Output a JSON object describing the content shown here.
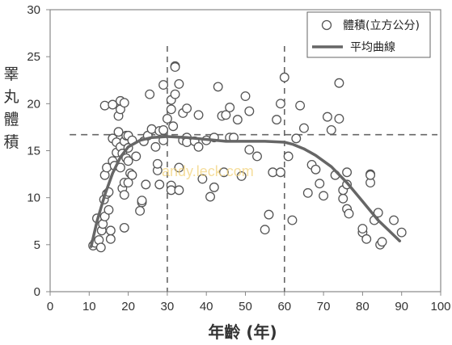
{
  "chart_data": {
    "type": "scatter",
    "xlabel": "年齡 (年)",
    "ylabel": "睪丸體積",
    "xlim": [
      0,
      100
    ],
    "ylim": [
      0,
      30
    ],
    "x_ticks": [
      0,
      10,
      20,
      30,
      40,
      50,
      60,
      70,
      80,
      90,
      100
    ],
    "y_ticks": [
      0,
      5,
      10,
      15,
      20,
      25,
      30
    ],
    "grid": false,
    "legend_position": "top-right",
    "watermark": "andy.leck.com",
    "reference_lines": {
      "vertical": [
        30,
        60
      ],
      "horizontal": 16.7
    },
    "series": [
      {
        "name": "體積(立方公分)",
        "kind": "scatter",
        "points": [
          [
            11,
            4.9
          ],
          [
            11.5,
            5.2
          ],
          [
            12,
            7.8
          ],
          [
            12.5,
            5.5
          ],
          [
            13,
            4.7
          ],
          [
            13.2,
            6.5
          ],
          [
            13.5,
            7.2
          ],
          [
            13.8,
            9.8
          ],
          [
            14,
            8
          ],
          [
            14,
            12.4
          ],
          [
            14,
            19.8
          ],
          [
            14.5,
            10.4
          ],
          [
            14.5,
            13.2
          ],
          [
            15,
            8.7
          ],
          [
            15,
            10.6
          ],
          [
            15.5,
            6.5
          ],
          [
            15.5,
            5.6
          ],
          [
            16,
            13.9
          ],
          [
            16,
            16.3
          ],
          [
            16,
            19.9
          ],
          [
            16.5,
            13.4
          ],
          [
            17,
            14.8
          ],
          [
            17,
            15.9
          ],
          [
            17.5,
            17
          ],
          [
            17.5,
            18.7
          ],
          [
            18,
            13.2
          ],
          [
            18,
            15.4
          ],
          [
            18,
            19.4
          ],
          [
            18,
            20.3
          ],
          [
            18.5,
            11
          ],
          [
            18.5,
            14.7
          ],
          [
            19,
            11.6
          ],
          [
            19,
            10.3
          ],
          [
            19,
            16
          ],
          [
            19,
            20.1
          ],
          [
            19,
            6.8
          ],
          [
            19.5,
            14.2
          ],
          [
            19.5,
            16.6
          ],
          [
            20,
            11.6
          ],
          [
            20,
            13.9
          ],
          [
            20,
            15.3
          ],
          [
            20,
            16.6
          ],
          [
            20.5,
            12.6
          ],
          [
            21,
            16.1
          ],
          [
            21,
            12.4
          ],
          [
            22,
            14.4
          ],
          [
            23,
            8.6
          ],
          [
            23.5,
            9.5
          ],
          [
            23.5,
            9.7
          ],
          [
            24,
            16
          ],
          [
            24.5,
            11.4
          ],
          [
            25,
            16.6
          ],
          [
            25.5,
            21
          ],
          [
            26,
            17.3
          ],
          [
            27,
            15.4
          ],
          [
            27.5,
            12.9
          ],
          [
            27.5,
            13.6
          ],
          [
            28,
            17.1
          ],
          [
            28,
            11.4
          ],
          [
            29,
            16.1
          ],
          [
            29,
            17.2
          ],
          [
            29,
            22
          ],
          [
            30,
            18.4
          ],
          [
            31,
            19.4
          ],
          [
            31,
            20.4
          ],
          [
            31,
            11.3
          ],
          [
            31,
            10.8
          ],
          [
            31.5,
            17.6
          ],
          [
            32,
            24
          ],
          [
            32,
            23.9
          ],
          [
            32,
            21
          ],
          [
            33,
            22.1
          ],
          [
            33,
            13.2
          ],
          [
            33,
            10.8
          ],
          [
            34,
            16.1
          ],
          [
            34,
            19
          ],
          [
            35,
            16.4
          ],
          [
            35,
            19.5
          ],
          [
            35,
            15.9
          ],
          [
            37,
            16
          ],
          [
            38,
            15.4
          ],
          [
            38,
            18.8
          ],
          [
            39,
            12
          ],
          [
            40,
            16.1
          ],
          [
            41,
            10.1
          ],
          [
            42,
            16.4
          ],
          [
            42,
            11.1
          ],
          [
            43,
            21.8
          ],
          [
            44,
            18.7
          ],
          [
            44.5,
            12.7
          ],
          [
            45,
            18.8
          ],
          [
            46,
            19.6
          ],
          [
            46,
            16.4
          ],
          [
            47,
            16.4
          ],
          [
            48,
            18.3
          ],
          [
            49,
            12.3
          ],
          [
            50,
            20.8
          ],
          [
            51,
            19.2
          ],
          [
            51,
            15.1
          ],
          [
            53,
            14.4
          ],
          [
            55,
            6.6
          ],
          [
            56,
            8.2
          ],
          [
            57,
            12.7
          ],
          [
            58,
            18.3
          ],
          [
            59,
            20
          ],
          [
            59,
            12.7
          ],
          [
            60,
            22.8
          ],
          [
            61,
            14.4
          ],
          [
            62,
            7.6
          ],
          [
            63,
            16.3
          ],
          [
            64,
            19.8
          ],
          [
            65,
            17.4
          ],
          [
            66,
            10.5
          ],
          [
            67,
            13.5
          ],
          [
            68,
            13
          ],
          [
            69,
            11.5
          ],
          [
            70,
            10.2
          ],
          [
            71,
            18.6
          ],
          [
            72,
            17.2
          ],
          [
            73,
            12.4
          ],
          [
            74,
            22.2
          ],
          [
            74,
            18.4
          ],
          [
            75,
            9.9
          ],
          [
            75,
            10.8
          ],
          [
            76,
            12.7
          ],
          [
            76,
            11.4
          ],
          [
            76,
            8.8
          ],
          [
            76.5,
            8.3
          ],
          [
            80,
            6.3
          ],
          [
            80,
            6.7
          ],
          [
            81,
            5.6
          ],
          [
            82,
            11.6
          ],
          [
            82,
            12.5
          ],
          [
            82,
            12.4
          ],
          [
            83,
            7.6
          ],
          [
            84,
            8.4
          ],
          [
            84.5,
            5
          ],
          [
            85,
            5.3
          ],
          [
            88,
            7.6
          ],
          [
            90,
            6.3
          ]
        ]
      },
      {
        "name": "平均曲線",
        "kind": "line",
        "points": [
          [
            10.5,
            4.8
          ],
          [
            12,
            7.5
          ],
          [
            14,
            10.3
          ],
          [
            16,
            12.6
          ],
          [
            18,
            14.3
          ],
          [
            20,
            15.4
          ],
          [
            23,
            16.1
          ],
          [
            26,
            16.4
          ],
          [
            30,
            16.5
          ],
          [
            35,
            16.4
          ],
          [
            40,
            16.2
          ],
          [
            45,
            16
          ],
          [
            50,
            16
          ],
          [
            55,
            16
          ],
          [
            60,
            15.9
          ],
          [
            62,
            15.7
          ],
          [
            65,
            15.2
          ],
          [
            68,
            14.5
          ],
          [
            72,
            13.3
          ],
          [
            76,
            11.6
          ],
          [
            80,
            9.6
          ],
          [
            84,
            7.6
          ],
          [
            87,
            6.4
          ],
          [
            89.5,
            5.4
          ]
        ]
      }
    ]
  }
}
